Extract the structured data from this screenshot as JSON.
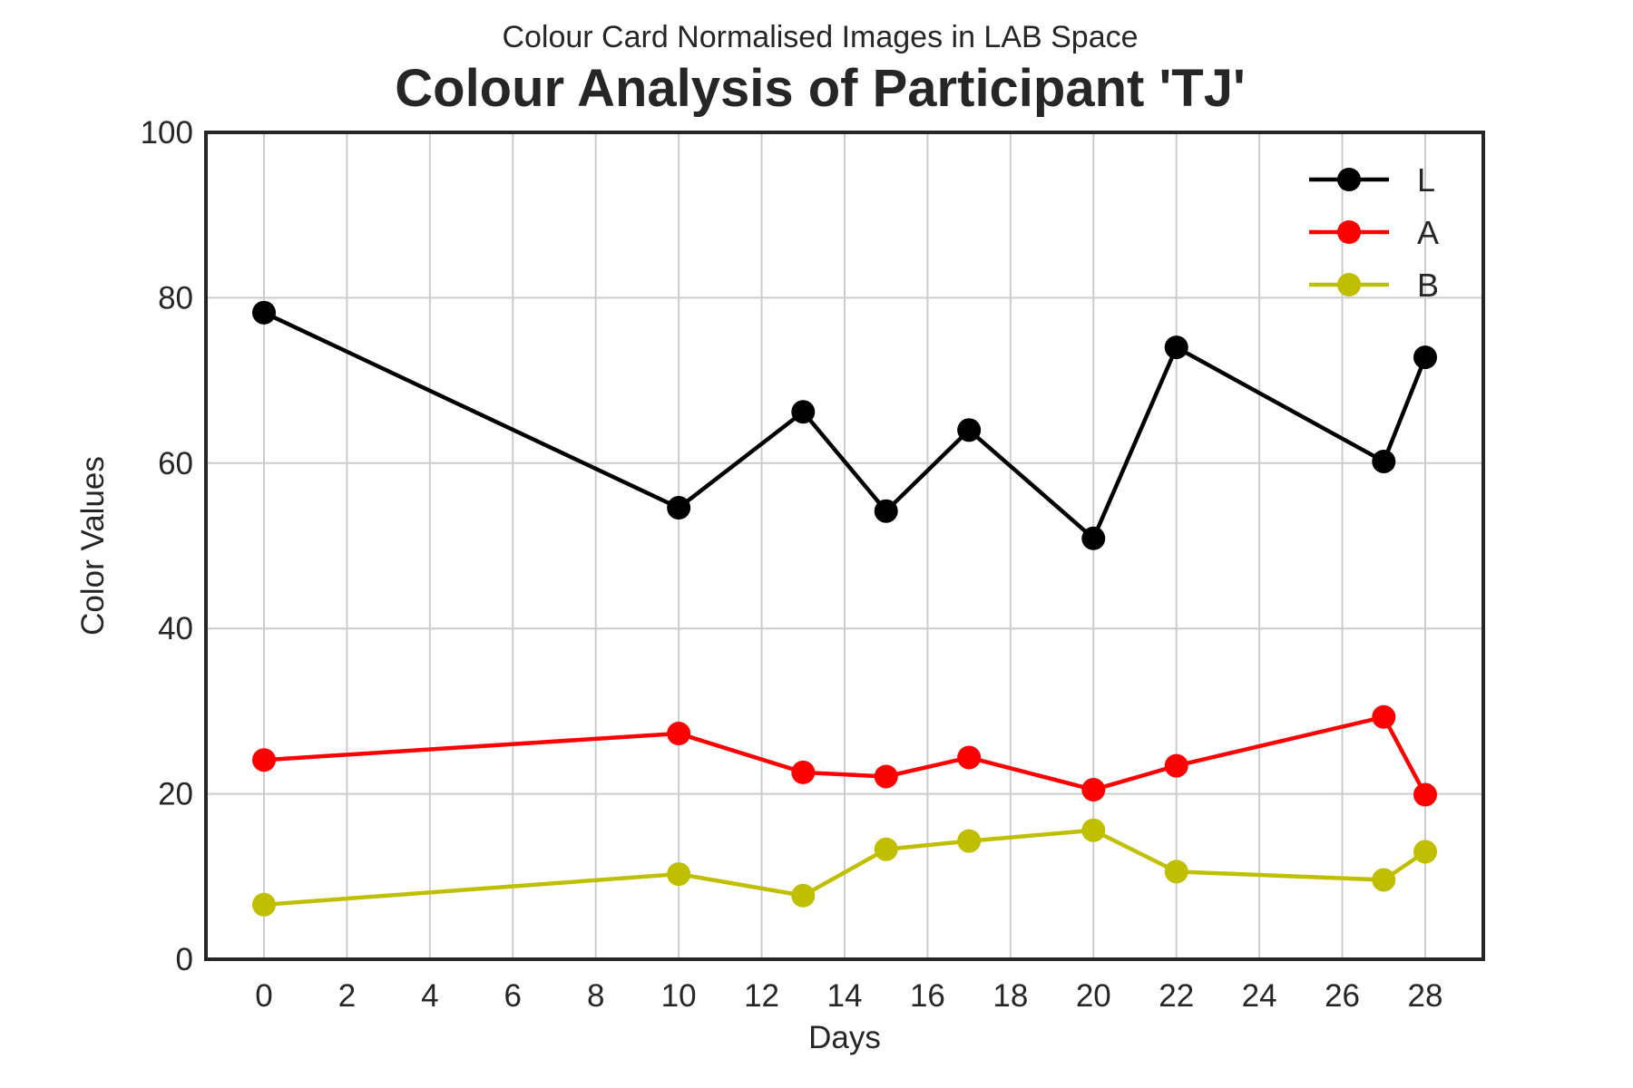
{
  "chart_data": {
    "type": "line",
    "subtitle": "Colour Card Normalised Images in LAB Space",
    "title": "Colour Analysis of Participant 'TJ'",
    "xlabel": "Days",
    "ylabel": "Color Values",
    "xlim": [
      -1.4,
      29.4
    ],
    "ylim": [
      0,
      100
    ],
    "xticks": [
      0,
      2,
      4,
      6,
      8,
      10,
      12,
      14,
      16,
      18,
      20,
      22,
      24,
      26,
      28
    ],
    "yticks": [
      0,
      20,
      40,
      60,
      80,
      100
    ],
    "grid": true,
    "legend_position": "top-right",
    "x": [
      0,
      10,
      13,
      15,
      17,
      20,
      22,
      27,
      28
    ],
    "series": [
      {
        "name": "L",
        "color": "#000000",
        "values": [
          78.2,
          54.6,
          66.2,
          54.2,
          64.0,
          50.9,
          74.0,
          60.2,
          72.8
        ]
      },
      {
        "name": "A",
        "color": "#ff0000",
        "values": [
          24.1,
          27.3,
          22.6,
          22.1,
          24.4,
          20.5,
          23.4,
          29.3,
          19.9
        ]
      },
      {
        "name": "B",
        "color": "#bfbf00",
        "values": [
          6.6,
          10.3,
          7.7,
          13.3,
          14.3,
          15.6,
          10.6,
          9.6,
          13.0
        ]
      }
    ]
  }
}
